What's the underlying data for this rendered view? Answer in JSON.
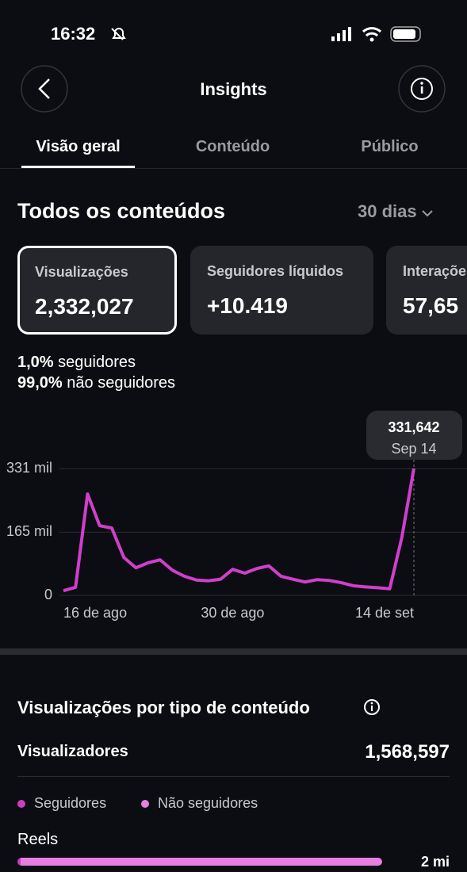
{
  "status_bar": {
    "time": "16:32"
  },
  "header": {
    "title": "Insights"
  },
  "tabs": [
    "Visão geral",
    "Conteúdo",
    "Público"
  ],
  "overview": {
    "title": "Todos os conteúdos",
    "period": "30 dias",
    "cards": [
      {
        "label": "Visualizações",
        "value": "2,332,027"
      },
      {
        "label": "Seguidores líquidos",
        "value": "+10.419"
      },
      {
        "label": "Interações",
        "value": "57,65"
      }
    ],
    "breakdown": [
      {
        "percent": "1,0%",
        "label": "seguidores"
      },
      {
        "percent": "99,0%",
        "label": "não seguidores"
      }
    ]
  },
  "chart_data": {
    "type": "line",
    "color": "#d03fcb",
    "categories": [
      "16 de ago",
      null,
      null,
      null,
      null,
      null,
      null,
      null,
      null,
      null,
      null,
      null,
      null,
      null,
      "30 de ago",
      null,
      null,
      null,
      null,
      null,
      null,
      null,
      null,
      null,
      null,
      null,
      null,
      null,
      null,
      "14 de set"
    ],
    "values": [
      12000,
      21000,
      265000,
      182000,
      176000,
      99000,
      72000,
      85000,
      93000,
      66000,
      50000,
      40000,
      38000,
      42000,
      68000,
      58000,
      70000,
      77000,
      50000,
      42000,
      35000,
      41000,
      39000,
      33000,
      25000,
      22000,
      20000,
      17000,
      151000,
      331642
    ],
    "ylim": [
      0,
      331642
    ],
    "yticks": [
      0,
      {
        "value": 165000,
        "label": "165 mil"
      },
      {
        "value": 331000,
        "label": "331 mil"
      }
    ],
    "grid": true,
    "tooltip": {
      "value_label": "331,642",
      "date": "Sep 14"
    }
  },
  "content_type": {
    "title": "Visualizações por tipo de conteúdo",
    "viewers_label": "Visualizadores",
    "viewers_value": "1,568,597",
    "legend": [
      {
        "name": "Seguidores",
        "color": "#c93fc0"
      },
      {
        "name": "Não seguidores",
        "color": "#e77fe0"
      }
    ],
    "rows": [
      {
        "label": "Reels",
        "value": "2 mi"
      }
    ]
  }
}
